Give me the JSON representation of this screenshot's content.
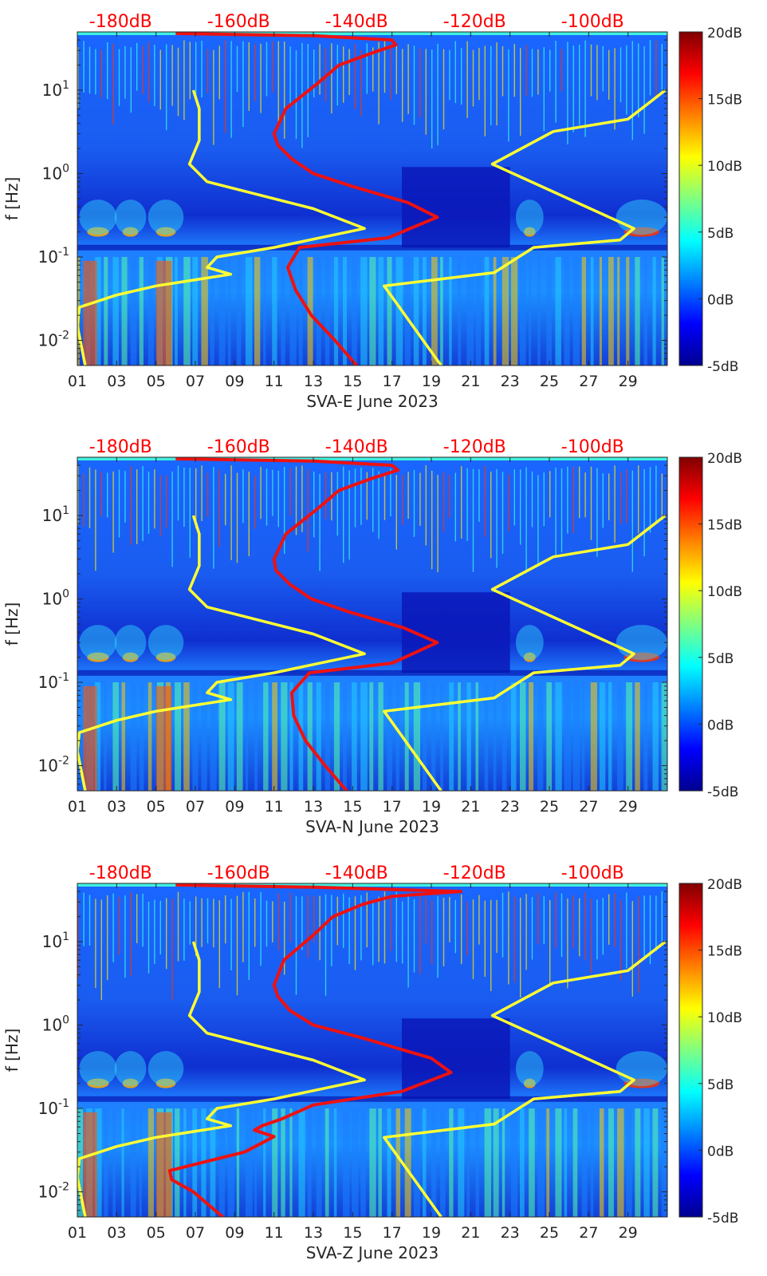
{
  "figure": {
    "colorbar_colors": [
      "#00008f",
      "#0000ff",
      "#0080ff",
      "#00ffff",
      "#80ff80",
      "#ffff00",
      "#ff8000",
      "#ff0000",
      "#800000"
    ],
    "yellow_curve_color": "#ffff33",
    "red_curve_color": "#ee1111",
    "top_axis_color": "#ff0000"
  },
  "chart_data": [
    {
      "type": "heatmap",
      "title": "",
      "xlabel": "SVA-E June 2023",
      "ylabel": "f [Hz]",
      "x_ticklabels": [
        "01",
        "03",
        "05",
        "07",
        "09",
        "11",
        "13",
        "15",
        "17",
        "19",
        "21",
        "23",
        "25",
        "27",
        "29"
      ],
      "x_tick_days": [
        1,
        3,
        5,
        7,
        9,
        11,
        13,
        15,
        17,
        19,
        21,
        23,
        25,
        27,
        29
      ],
      "xlim": [
        1,
        31
      ],
      "y_scale": "log",
      "ylim": [
        0.005,
        50
      ],
      "y_ticklabels": [
        "10^{-2}",
        "10^{-1}",
        "10^{0}",
        "10^{1}"
      ],
      "y_tick_values": [
        0.01,
        0.1,
        1,
        10
      ],
      "top_axis_labels": [
        "-180dB",
        "-160dB",
        "-140dB",
        "-120dB",
        "-100dB"
      ],
      "top_axis_days": [
        3.2,
        9.2,
        15.2,
        21.2,
        27.2
      ],
      "colorbar": {
        "labels": [
          "20dB",
          "15dB",
          "10dB",
          "5dB",
          "0dB",
          "-5dB"
        ],
        "values": [
          20,
          15,
          10,
          5,
          0,
          -5
        ],
        "range": [
          -5,
          20
        ]
      },
      "curves": [
        {
          "name": "model-low",
          "color": "yellow",
          "points": [
            [
              1.4,
              0.005
            ],
            [
              1.0,
              0.015
            ],
            [
              1.1,
              0.025
            ],
            [
              3.0,
              0.035
            ],
            [
              5.0,
              0.045
            ],
            [
              8.8,
              0.062
            ],
            [
              7.6,
              0.075
            ],
            [
              8.1,
              0.1
            ],
            [
              11.0,
              0.13
            ],
            [
              15.6,
              0.22
            ],
            [
              13.0,
              0.38
            ],
            [
              7.6,
              0.8
            ],
            [
              6.7,
              1.3
            ],
            [
              7.2,
              2.5
            ],
            [
              7.2,
              6
            ],
            [
              6.9,
              10
            ]
          ]
        },
        {
          "name": "model-high",
          "color": "yellow",
          "points": [
            [
              19.5,
              0.005
            ],
            [
              16.6,
              0.045
            ],
            [
              22.2,
              0.065
            ],
            [
              24.2,
              0.13
            ],
            [
              28.6,
              0.16
            ],
            [
              29.3,
              0.22
            ],
            [
              22.1,
              1.3
            ],
            [
              25.2,
              3.2
            ],
            [
              29.0,
              4.5
            ],
            [
              30.9,
              10
            ]
          ]
        },
        {
          "name": "psd-curve",
          "color": "red",
          "points": [
            [
              15.2,
              0.005
            ],
            [
              14.1,
              0.01
            ],
            [
              12.9,
              0.02
            ],
            [
              12.1,
              0.04
            ],
            [
              11.7,
              0.075
            ],
            [
              12.3,
              0.13
            ],
            [
              16.8,
              0.17
            ],
            [
              19.3,
              0.3
            ],
            [
              17.8,
              0.45
            ],
            [
              15.0,
              0.7
            ],
            [
              13.0,
              1.0
            ],
            [
              11.9,
              1.5
            ],
            [
              11.2,
              2.2
            ],
            [
              11.0,
              3.0
            ],
            [
              11.6,
              6
            ],
            [
              13.2,
              12
            ],
            [
              14.3,
              20
            ],
            [
              16.0,
              28
            ],
            [
              17.2,
              35
            ],
            [
              17.0,
              40
            ],
            [
              13.0,
              45
            ],
            [
              6.0,
              48
            ]
          ]
        }
      ]
    },
    {
      "type": "heatmap",
      "title": "",
      "xlabel": "SVA-N June 2023",
      "ylabel": "f [Hz]",
      "x_ticklabels": [
        "01",
        "03",
        "05",
        "07",
        "09",
        "11",
        "13",
        "15",
        "17",
        "19",
        "21",
        "23",
        "25",
        "27",
        "29"
      ],
      "x_tick_days": [
        1,
        3,
        5,
        7,
        9,
        11,
        13,
        15,
        17,
        19,
        21,
        23,
        25,
        27,
        29
      ],
      "xlim": [
        1,
        31
      ],
      "y_scale": "log",
      "ylim": [
        0.005,
        50
      ],
      "y_ticklabels": [
        "10^{-2}",
        "10^{-1}",
        "10^{0}",
        "10^{1}"
      ],
      "y_tick_values": [
        0.01,
        0.1,
        1,
        10
      ],
      "top_axis_labels": [
        "-180dB",
        "-160dB",
        "-140dB",
        "-120dB",
        "-100dB"
      ],
      "top_axis_days": [
        3.2,
        9.2,
        15.2,
        21.2,
        27.2
      ],
      "colorbar": {
        "labels": [
          "20dB",
          "15dB",
          "10dB",
          "5dB",
          "0dB",
          "-5dB"
        ],
        "values": [
          20,
          15,
          10,
          5,
          0,
          -5
        ],
        "range": [
          -5,
          20
        ]
      },
      "curves": [
        {
          "name": "model-low",
          "color": "yellow",
          "points": [
            [
              1.4,
              0.005
            ],
            [
              1.0,
              0.015
            ],
            [
              1.1,
              0.025
            ],
            [
              3.0,
              0.035
            ],
            [
              5.0,
              0.045
            ],
            [
              8.8,
              0.062
            ],
            [
              7.6,
              0.075
            ],
            [
              8.1,
              0.1
            ],
            [
              11.0,
              0.13
            ],
            [
              15.6,
              0.22
            ],
            [
              13.0,
              0.38
            ],
            [
              7.6,
              0.8
            ],
            [
              6.7,
              1.3
            ],
            [
              7.2,
              2.5
            ],
            [
              7.2,
              6
            ],
            [
              6.9,
              10
            ]
          ]
        },
        {
          "name": "model-high",
          "color": "yellow",
          "points": [
            [
              19.5,
              0.005
            ],
            [
              16.6,
              0.045
            ],
            [
              22.2,
              0.065
            ],
            [
              24.2,
              0.13
            ],
            [
              28.6,
              0.16
            ],
            [
              29.3,
              0.22
            ],
            [
              22.1,
              1.3
            ],
            [
              25.2,
              3.2
            ],
            [
              29.0,
              4.5
            ],
            [
              30.9,
              10
            ]
          ]
        },
        {
          "name": "psd-curve",
          "color": "red",
          "points": [
            [
              14.7,
              0.005
            ],
            [
              13.6,
              0.01
            ],
            [
              12.6,
              0.02
            ],
            [
              12.0,
              0.04
            ],
            [
              11.9,
              0.075
            ],
            [
              12.8,
              0.13
            ],
            [
              17.0,
              0.17
            ],
            [
              19.3,
              0.3
            ],
            [
              17.6,
              0.45
            ],
            [
              14.8,
              0.7
            ],
            [
              12.9,
              1.0
            ],
            [
              11.8,
              1.5
            ],
            [
              11.1,
              2.2
            ],
            [
              11.0,
              3.0
            ],
            [
              11.6,
              6
            ],
            [
              13.2,
              12
            ],
            [
              14.3,
              20
            ],
            [
              16.0,
              28
            ],
            [
              17.3,
              35
            ],
            [
              17.0,
              40
            ],
            [
              13.0,
              45
            ],
            [
              6.0,
              48
            ]
          ]
        }
      ]
    },
    {
      "type": "heatmap",
      "title": "",
      "xlabel": "SVA-Z June 2023",
      "ylabel": "f [Hz]",
      "x_ticklabels": [
        "01",
        "03",
        "05",
        "07",
        "09",
        "11",
        "13",
        "15",
        "17",
        "19",
        "21",
        "23",
        "25",
        "27",
        "29"
      ],
      "x_tick_days": [
        1,
        3,
        5,
        7,
        9,
        11,
        13,
        15,
        17,
        19,
        21,
        23,
        25,
        27,
        29
      ],
      "xlim": [
        1,
        31
      ],
      "y_scale": "log",
      "ylim": [
        0.005,
        50
      ],
      "y_ticklabels": [
        "10^{-2}",
        "10^{-1}",
        "10^{0}",
        "10^{1}"
      ],
      "y_tick_values": [
        0.01,
        0.1,
        1,
        10
      ],
      "top_axis_labels": [
        "-180dB",
        "-160dB",
        "-140dB",
        "-120dB",
        "-100dB"
      ],
      "top_axis_days": [
        3.2,
        9.2,
        15.2,
        21.2,
        27.2
      ],
      "colorbar": {
        "labels": [
          "20dB",
          "15dB",
          "10dB",
          "5dB",
          "0dB",
          "-5dB"
        ],
        "values": [
          20,
          15,
          10,
          5,
          0,
          -5
        ],
        "range": [
          -5,
          20
        ]
      },
      "curves": [
        {
          "name": "model-low",
          "color": "yellow",
          "points": [
            [
              1.4,
              0.005
            ],
            [
              1.0,
              0.015
            ],
            [
              1.1,
              0.025
            ],
            [
              3.0,
              0.035
            ],
            [
              5.0,
              0.045
            ],
            [
              8.8,
              0.062
            ],
            [
              7.6,
              0.075
            ],
            [
              8.1,
              0.1
            ],
            [
              11.0,
              0.13
            ],
            [
              15.6,
              0.22
            ],
            [
              13.0,
              0.38
            ],
            [
              7.6,
              0.8
            ],
            [
              6.7,
              1.3
            ],
            [
              7.2,
              2.5
            ],
            [
              7.2,
              6
            ],
            [
              6.9,
              10
            ]
          ]
        },
        {
          "name": "model-high",
          "color": "yellow",
          "points": [
            [
              19.5,
              0.005
            ],
            [
              16.6,
              0.045
            ],
            [
              22.2,
              0.065
            ],
            [
              24.2,
              0.13
            ],
            [
              28.6,
              0.16
            ],
            [
              29.3,
              0.22
            ],
            [
              22.1,
              1.3
            ],
            [
              25.2,
              3.2
            ],
            [
              29.0,
              4.5
            ],
            [
              30.9,
              10
            ]
          ]
        },
        {
          "name": "psd-curve",
          "color": "red",
          "points": [
            [
              8.4,
              0.005
            ],
            [
              6.9,
              0.01
            ],
            [
              5.8,
              0.014
            ],
            [
              5.7,
              0.018
            ],
            [
              9.5,
              0.03
            ],
            [
              11.0,
              0.046
            ],
            [
              10.0,
              0.055
            ],
            [
              10.4,
              0.062
            ],
            [
              11.4,
              0.075
            ],
            [
              13.0,
              0.11
            ],
            [
              17.5,
              0.16
            ],
            [
              20.0,
              0.27
            ],
            [
              19.0,
              0.4
            ],
            [
              15.5,
              0.7
            ],
            [
              13.0,
              1.0
            ],
            [
              11.8,
              1.5
            ],
            [
              11.2,
              2.2
            ],
            [
              11.0,
              3.0
            ],
            [
              11.5,
              6
            ],
            [
              13.0,
              12
            ],
            [
              14.0,
              20
            ],
            [
              15.5,
              28
            ],
            [
              17.0,
              35
            ],
            [
              20.5,
              40
            ],
            [
              13.0,
              45
            ],
            [
              6.0,
              48
            ]
          ]
        }
      ]
    }
  ]
}
